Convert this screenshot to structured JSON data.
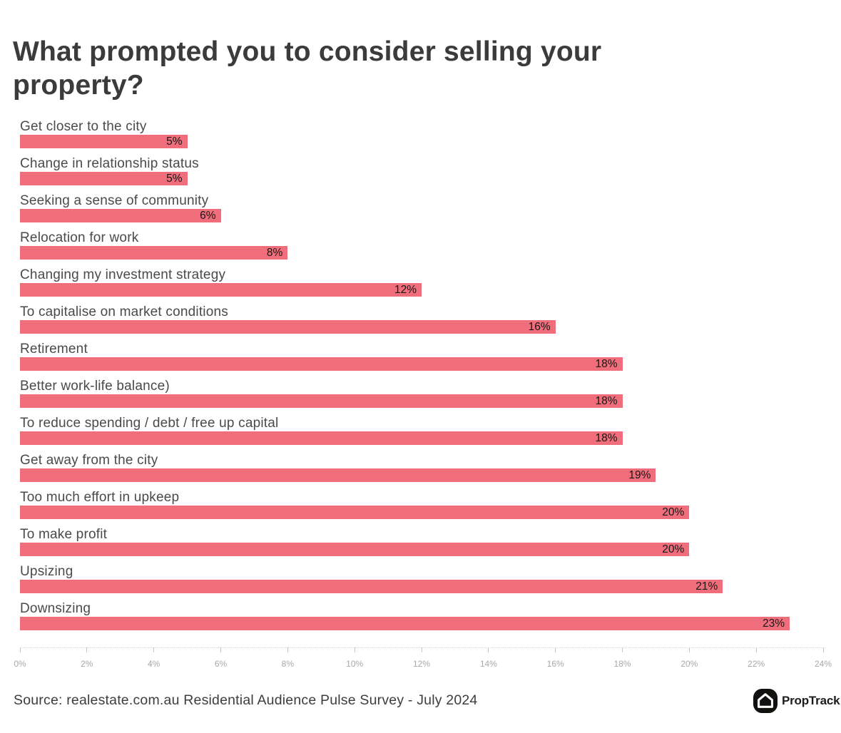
{
  "title": {
    "line1": "What prompted you to consider selling your",
    "line2": "property?"
  },
  "source": "Source: realestate.com.au Residential Audience Pulse Survey - July 2024",
  "branding": {
    "logo_text": "PropTrack",
    "logo_icon": "house-icon"
  },
  "colors": {
    "bar": "#f06e7c",
    "title": "#3b3b3b",
    "label": "#4a4a4a",
    "value": "#161616",
    "axis_text": "#a9a9a9",
    "axis_line": "#d5d5d5",
    "tick": "#c6c6c6",
    "source": "#3d3d3d"
  },
  "chart_data": {
    "type": "bar",
    "orientation": "horizontal",
    "title": "What prompted you to consider selling your property?",
    "xlabel": "",
    "ylabel": "",
    "xlim": [
      0,
      24
    ],
    "grid": false,
    "legend": false,
    "x_ticks": [
      "0%",
      "2%",
      "4%",
      "6%",
      "8%",
      "10%",
      "12%",
      "14%",
      "16%",
      "18%",
      "20%",
      "22%",
      "24%"
    ],
    "categories": [
      "Get closer to the city",
      "Change in relationship status",
      "Seeking a sense of community",
      "Relocation for work",
      "Changing my investment strategy",
      "To capitalise on market conditions",
      "Retirement",
      "Better work-life balance)",
      "To reduce spending / debt / free up capital",
      "Get away from the city",
      "Too much effort in upkeep",
      "To make profit",
      "Upsizing",
      "Downsizing"
    ],
    "values": [
      5,
      5,
      6,
      8,
      12,
      16,
      18,
      18,
      18,
      19,
      20,
      20,
      21,
      23
    ],
    "value_labels": [
      "5%",
      "5%",
      "6%",
      "8%",
      "12%",
      "16%",
      "18%",
      "18%",
      "18%",
      "19%",
      "20%",
      "20%",
      "21%",
      "23%"
    ]
  }
}
